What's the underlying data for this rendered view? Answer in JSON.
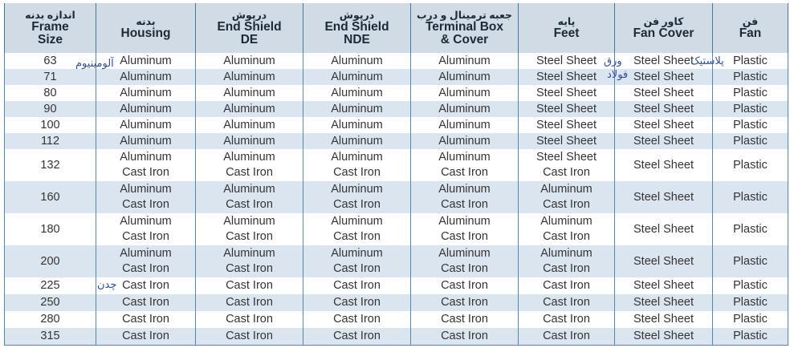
{
  "headers": [
    {
      "fa": "اندازه بدنه",
      "en1": "Frame",
      "en2": "Size"
    },
    {
      "fa": "بدنه",
      "en1": "Housing",
      "en2": ""
    },
    {
      "fa": "درپوش",
      "en1": "End Shield",
      "en2": "DE"
    },
    {
      "fa": "درپوش",
      "en1": "End Shield",
      "en2": "NDE"
    },
    {
      "fa": "جعبه ترمینال و درب",
      "en1": "Terminal Box",
      "en2": "& Cover"
    },
    {
      "fa": "پایه",
      "en1": "Feet",
      "en2": ""
    },
    {
      "fa": "کاور فن",
      "en1": "Fan Cover",
      "en2": ""
    },
    {
      "fa": "فن",
      "en1": "Fan",
      "en2": ""
    }
  ],
  "rows": [
    {
      "size": "63",
      "housing": [
        "Aluminum"
      ],
      "de": [
        "Aluminum"
      ],
      "nde": [
        "Aluminum"
      ],
      "tb": [
        "Aluminum"
      ],
      "feet": [
        "Steel Sheet"
      ],
      "cover": [
        "Steel Sheet"
      ],
      "fan": [
        "Plastic"
      ]
    },
    {
      "size": "71",
      "housing": [
        "Aluminum"
      ],
      "de": [
        "Aluminum"
      ],
      "nde": [
        "Aluminum"
      ],
      "tb": [
        "Aluminum"
      ],
      "feet": [
        "Steel Sheet"
      ],
      "cover": [
        "Steel Sheet"
      ],
      "fan": [
        "Plastic"
      ]
    },
    {
      "size": "80",
      "housing": [
        "Aluminum"
      ],
      "de": [
        "Aluminum"
      ],
      "nde": [
        "Aluminum"
      ],
      "tb": [
        "Aluminum"
      ],
      "feet": [
        "Steel Sheet"
      ],
      "cover": [
        "Steel Sheet"
      ],
      "fan": [
        "Plastic"
      ]
    },
    {
      "size": "90",
      "housing": [
        "Aluminum"
      ],
      "de": [
        "Aluminum"
      ],
      "nde": [
        "Aluminum"
      ],
      "tb": [
        "Aluminum"
      ],
      "feet": [
        "Steel Sheet"
      ],
      "cover": [
        "Steel Sheet"
      ],
      "fan": [
        "Plastic"
      ]
    },
    {
      "size": "100",
      "housing": [
        "Aluminum"
      ],
      "de": [
        "Aluminum"
      ],
      "nde": [
        "Aluminum"
      ],
      "tb": [
        "Aluminum"
      ],
      "feet": [
        "Steel Sheet"
      ],
      "cover": [
        "Steel Sheet"
      ],
      "fan": [
        "Plastic"
      ]
    },
    {
      "size": "112",
      "housing": [
        "Aluminum"
      ],
      "de": [
        "Aluminum"
      ],
      "nde": [
        "Aluminum"
      ],
      "tb": [
        "Aluminum"
      ],
      "feet": [
        "Steel Sheet"
      ],
      "cover": [
        "Steel Sheet"
      ],
      "fan": [
        "Plastic"
      ]
    },
    {
      "size": "132",
      "housing": [
        "Aluminum",
        "Cast Iron"
      ],
      "de": [
        "Aluminum",
        "Cast Iron"
      ],
      "nde": [
        "Aluminum",
        "Cast Iron"
      ],
      "tb": [
        "Aluminum",
        "Cast Iron"
      ],
      "feet": [
        "Steel Sheet",
        "Cast Iron"
      ],
      "cover": [
        "Steel Sheet"
      ],
      "fan": [
        "Plastic"
      ]
    },
    {
      "size": "160",
      "housing": [
        "Aluminum",
        "Cast Iron"
      ],
      "de": [
        "Aluminum",
        "Cast Iron"
      ],
      "nde": [
        "Aluminum",
        "Cast Iron"
      ],
      "tb": [
        "Aluminum",
        "Cast Iron"
      ],
      "feet": [
        "Aluminum",
        "Cast Iron"
      ],
      "cover": [
        "Steel Sheet"
      ],
      "fan": [
        "Plastic"
      ]
    },
    {
      "size": "180",
      "housing": [
        "Aluminum",
        "Cast Iron"
      ],
      "de": [
        "Aluminum",
        "Cast Iron"
      ],
      "nde": [
        "Aluminum",
        "Cast Iron"
      ],
      "tb": [
        "Aluminum",
        "Cast Iron"
      ],
      "feet": [
        "Aluminum",
        "Cast Iron"
      ],
      "cover": [
        "Steel Sheet"
      ],
      "fan": [
        "Plastic"
      ]
    },
    {
      "size": "200",
      "housing": [
        "Aluminum",
        "Cast Iron"
      ],
      "de": [
        "Aluminum",
        "Cast Iron"
      ],
      "nde": [
        "Aluminum",
        "Cast Iron"
      ],
      "tb": [
        "Aluminum",
        "Cast Iron"
      ],
      "feet": [
        "Aluminum",
        "Cast Iron"
      ],
      "cover": [
        "Steel Sheet"
      ],
      "fan": [
        "Plastic"
      ]
    },
    {
      "size": "225",
      "housing": [
        "Cast Iron"
      ],
      "de": [
        "Cast Iron"
      ],
      "nde": [
        "Cast Iron"
      ],
      "tb": [
        "Cast Iron"
      ],
      "feet": [
        "Cast Iron"
      ],
      "cover": [
        "Steel Sheet"
      ],
      "fan": [
        "Plastic"
      ]
    },
    {
      "size": "250",
      "housing": [
        "Cast Iron"
      ],
      "de": [
        "Cast Iron"
      ],
      "nde": [
        "Cast Iron"
      ],
      "tb": [
        "Cast Iron"
      ],
      "feet": [
        "Cast Iron"
      ],
      "cover": [
        "Steel Sheet"
      ],
      "fan": [
        "Plastic"
      ]
    },
    {
      "size": "280",
      "housing": [
        "Cast Iron"
      ],
      "de": [
        "Cast Iron"
      ],
      "nde": [
        "Cast Iron"
      ],
      "tb": [
        "Cast Iron"
      ],
      "feet": [
        "Cast Iron"
      ],
      "cover": [
        "Steel Sheet"
      ],
      "fan": [
        "Plastic"
      ]
    },
    {
      "size": "315",
      "housing": [
        "Cast Iron"
      ],
      "de": [
        "Cast Iron"
      ],
      "nde": [
        "Cast Iron"
      ],
      "tb": [
        "Cast Iron"
      ],
      "feet": [
        "Cast Iron"
      ],
      "cover": [
        "Steel Sheet"
      ],
      "fan": [
        "Plastic"
      ]
    }
  ],
  "annotations": {
    "aluminum_fa": "آلومینیوم",
    "sheet_fa_1": "ورق",
    "sheet_fa_2": "فولاد",
    "plastic_fa": "پلاستیک",
    "castiron_fa": "چدن"
  }
}
